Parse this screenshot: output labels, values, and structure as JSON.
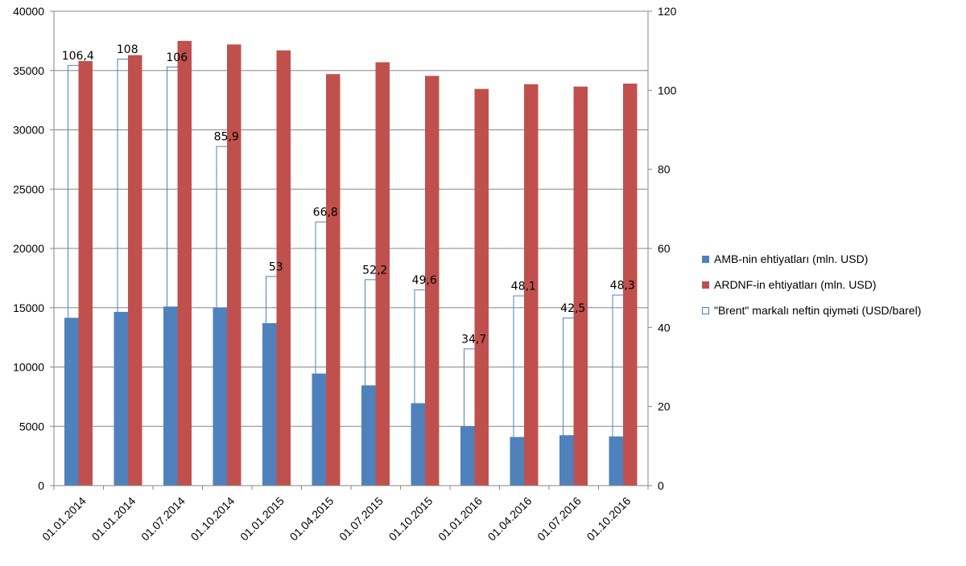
{
  "chart_data": {
    "type": "bar",
    "categories": [
      "01.01.2014",
      "01.01.2014",
      "01.07.2014",
      "01.10.2014",
      "01.01.2015",
      "01.04.2015",
      "01.07.2015",
      "01.10.2015",
      "01.01.2016",
      "01.04.2016",
      "01.07.2016",
      "01.10.2016"
    ],
    "series": [
      {
        "name": "AMB-nin ehtiyatları (mln. USD)",
        "axis": "left",
        "style": "filled",
        "color": "#4F81BD",
        "values": [
          14150,
          14650,
          15100,
          15000,
          13700,
          9450,
          8450,
          6950,
          5000,
          4100,
          4250,
          4150
        ]
      },
      {
        "name": "ARDNF-in ehtiyatları (mln. USD)",
        "axis": "left",
        "style": "filled",
        "color": "#C0504D",
        "values": [
          35800,
          36300,
          37500,
          37200,
          36700,
          34700,
          35700,
          34550,
          33450,
          33850,
          33650,
          33900
        ]
      },
      {
        "name": "\"Brent\" markalı neftin qiyməti (USD/barel)",
        "axis": "right",
        "style": "outline",
        "color": "#4F81BD",
        "values": [
          106.4,
          108,
          106,
          85.9,
          53,
          66.8,
          52.2,
          49.6,
          34.7,
          48.1,
          42.5,
          48.3
        ],
        "labels": [
          "106,4",
          "108",
          "106",
          "85,9",
          "53",
          "66,8",
          "52,2",
          "49,6",
          "34,7",
          "48,1",
          "42,5",
          "48,3"
        ]
      }
    ],
    "y_left": {
      "min": 0,
      "max": 40000,
      "step": 5000,
      "ticks": [
        "0",
        "5000",
        "10000",
        "15000",
        "20000",
        "25000",
        "30000",
        "35000",
        "40000"
      ]
    },
    "y_right": {
      "min": 0,
      "max": 120,
      "step": 20,
      "ticks": [
        "0",
        "20",
        "40",
        "60",
        "80",
        "100",
        "120"
      ]
    },
    "grid": true,
    "legend": "right"
  }
}
